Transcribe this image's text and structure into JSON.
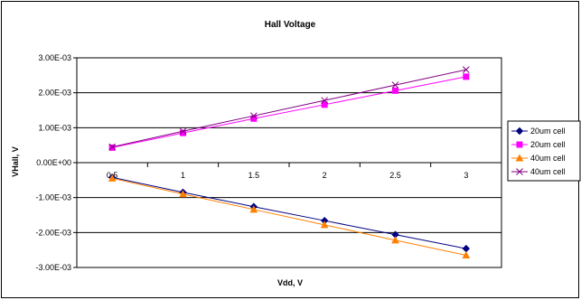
{
  "chart_data": {
    "type": "line",
    "title": "Hall Voltage",
    "xlabel": "Vdd, V",
    "ylabel": "VHall, V",
    "x": [
      0.5,
      1,
      1.5,
      2,
      2.5,
      3
    ],
    "x_tick_labels": [
      "0.5",
      "1",
      "1.5",
      "2",
      "2.5",
      "3"
    ],
    "ylim": [
      -0.003,
      0.003
    ],
    "y_tick_values": [
      0.003,
      0.002,
      0.001,
      0.0,
      -0.001,
      -0.002,
      -0.003
    ],
    "y_tick_labels": [
      "3.00E-03",
      "2.00E-03",
      "1.00E-03",
      "0.00E+00",
      "-1.00E-03",
      "-2.00E-03",
      "-3.00E-03"
    ],
    "grid": "horizontal",
    "legend_position": "right",
    "series": [
      {
        "name": "20um cell",
        "marker": "diamond",
        "color": "#000080",
        "values": [
          -0.00042,
          -0.00085,
          -0.00126,
          -0.00166,
          -0.00206,
          -0.00246
        ]
      },
      {
        "name": "20um cell",
        "marker": "square",
        "color": "#FF00FF",
        "values": [
          0.00043,
          0.00085,
          0.00126,
          0.00166,
          0.00206,
          0.00246
        ]
      },
      {
        "name": "40um cell",
        "marker": "triangle",
        "color": "#FF8000",
        "values": [
          -0.00045,
          -0.0009,
          -0.00134,
          -0.00178,
          -0.00222,
          -0.00265
        ]
      },
      {
        "name": "40um cell",
        "marker": "x",
        "color": "#800080",
        "values": [
          0.00045,
          0.0009,
          0.00134,
          0.00178,
          0.00222,
          0.00266
        ]
      }
    ]
  }
}
